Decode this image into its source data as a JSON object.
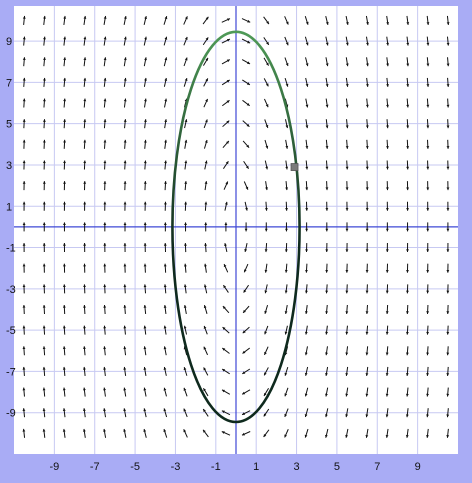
{
  "chart_data": {
    "type": "vector-field",
    "title": "",
    "xlabel": "",
    "ylabel": "",
    "xlim": [
      -11,
      11
    ],
    "ylim": [
      -11,
      10.7
    ],
    "x_ticks": [
      -9,
      -7,
      -5,
      -3,
      -1,
      1,
      3,
      5,
      7,
      9
    ],
    "y_ticks": [
      9,
      7,
      5,
      3,
      1,
      -1,
      -3,
      -5,
      -7,
      -9
    ],
    "grid": true,
    "field": {
      "description": "dx = y, dy = -9x direction field",
      "dx_coeff": 1,
      "dy_coeff": -9,
      "sample_x": [
        -10.5,
        -9.5,
        -8.5,
        -7.5,
        -6.5,
        -5.5,
        -4.5,
        -3.5,
        -2.5,
        -1.5,
        -0.5,
        0.5,
        1.5,
        2.5,
        3.5,
        4.5,
        5.5,
        6.5,
        7.5,
        8.5,
        9.5,
        10.5
      ],
      "sample_y": [
        10,
        9,
        8,
        7,
        6,
        5,
        4,
        3,
        2,
        1,
        0,
        -1,
        -2,
        -3,
        -4,
        -5,
        -6,
        -7,
        -8,
        -9,
        -10
      ]
    },
    "trajectory": {
      "type": "ellipse",
      "center": [
        0,
        0
      ],
      "semi_axis_x": 3.15,
      "semi_axis_y": 9.45,
      "start_point": [
        2.9,
        2.9
      ]
    },
    "colors": {
      "background": "#ffffff",
      "outer": "#a9acf5",
      "grid": "#c7c9f2",
      "axis": "#3f48d6",
      "arrow": "#111111",
      "curve_top": "#4f9a57",
      "curve_bottom": "#0f2a1e",
      "marker": "#7a7a7a"
    }
  }
}
